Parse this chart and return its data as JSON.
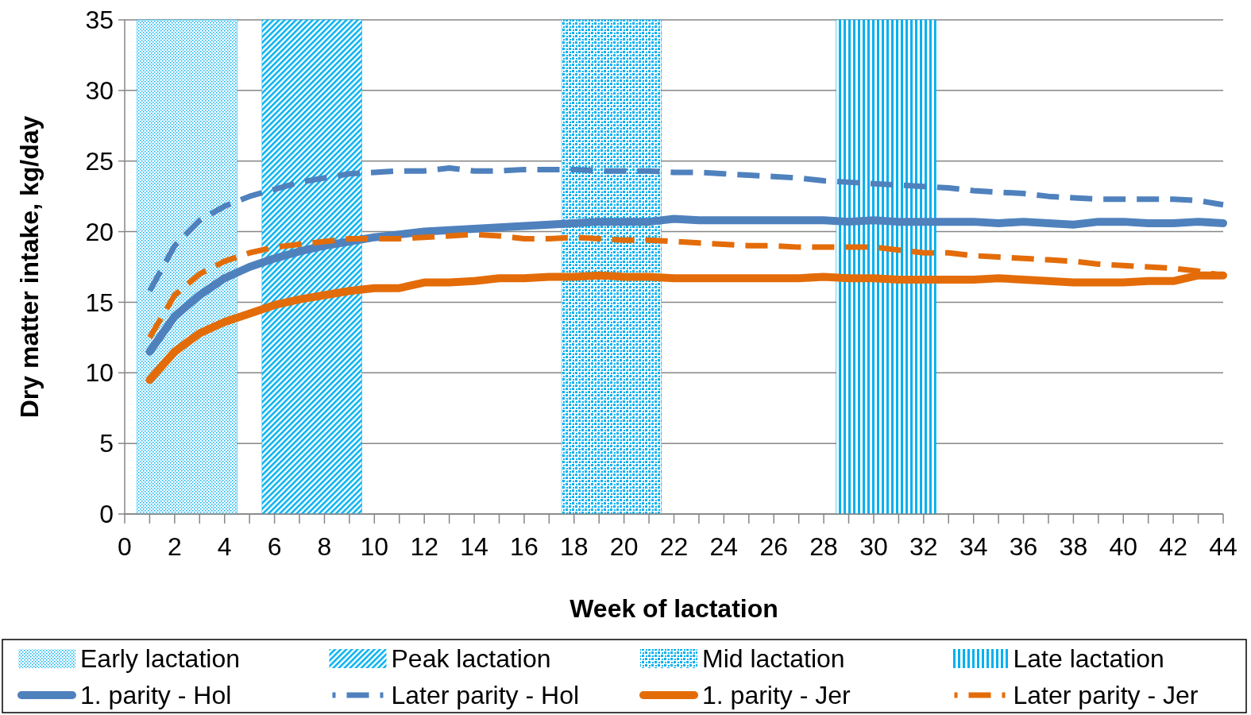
{
  "chart_data": {
    "type": "line",
    "xlabel": "Week of lactation",
    "ylabel": "Dry matter intake, kg/day",
    "xlim": [
      0,
      44
    ],
    "ylim": [
      0,
      35
    ],
    "yticks": [
      0,
      5,
      10,
      15,
      20,
      25,
      30,
      35
    ],
    "xticks": [
      0,
      {
        "value": 1,
        "label": null
      },
      2,
      {
        "value": 3,
        "label": null
      },
      4,
      {
        "value": 5,
        "label": null
      },
      6,
      {
        "value": 7,
        "label": null
      },
      8,
      {
        "value": 9,
        "label": null
      },
      10,
      {
        "value": 11,
        "label": null
      },
      12,
      {
        "value": 13,
        "label": null
      },
      14,
      {
        "value": 15,
        "label": null
      },
      16,
      {
        "value": 17,
        "label": null
      },
      18,
      {
        "value": 19,
        "label": null
      },
      20,
      {
        "value": 21,
        "label": null
      },
      22,
      {
        "value": 23,
        "label": null
      },
      24,
      {
        "value": 25,
        "label": null
      },
      26,
      {
        "value": 27,
        "label": null
      },
      28,
      {
        "value": 29,
        "label": null
      },
      30,
      {
        "value": 31,
        "label": null
      },
      32,
      {
        "value": 33,
        "label": null
      },
      34,
      {
        "value": 35,
        "label": null
      },
      36,
      {
        "value": 37,
        "label": null
      },
      38,
      {
        "value": 39,
        "label": null
      },
      40,
      {
        "value": 41,
        "label": null
      },
      42,
      {
        "value": 43,
        "label": null
      },
      44
    ],
    "grid": "y",
    "legend": "bottom",
    "x": [
      1,
      2,
      3,
      4,
      5,
      6,
      7,
      8,
      9,
      10,
      11,
      12,
      13,
      14,
      15,
      16,
      17,
      18,
      19,
      20,
      21,
      22,
      23,
      24,
      25,
      26,
      27,
      28,
      29,
      30,
      31,
      32,
      33,
      34,
      35,
      36,
      37,
      38,
      39,
      40,
      41,
      42,
      43,
      44
    ],
    "bands": [
      {
        "axis": "x",
        "from": 0.5,
        "to": 4.5,
        "label": "Early lactation",
        "color": "#00b0f0"
      },
      {
        "axis": "x",
        "from": 5.5,
        "to": 9.5,
        "label": "Peak lactation",
        "color": "#00b0f0"
      },
      {
        "axis": "x",
        "from": 17.5,
        "to": 21.5,
        "label": "Mid lactation",
        "color": "#00b0f0"
      },
      {
        "axis": "x",
        "from": 28.5,
        "to": 32.5,
        "label": "Late lactation",
        "color": "#00b0f0"
      }
    ],
    "series": [
      {
        "name": "1. parity - Hol",
        "color": "#4f81bd",
        "line_style": "solid",
        "values": [
          11.5,
          14,
          15.5,
          16.7,
          17.5,
          18.1,
          18.6,
          19.0,
          19.3,
          19.6,
          19.8,
          20.0,
          20.1,
          20.2,
          20.3,
          20.4,
          20.5,
          20.6,
          20.7,
          20.7,
          20.7,
          20.9,
          20.8,
          20.8,
          20.8,
          20.8,
          20.8,
          20.8,
          20.7,
          20.8,
          20.7,
          20.7,
          20.7,
          20.7,
          20.6,
          20.7,
          20.6,
          20.5,
          20.7,
          20.7,
          20.6,
          20.6,
          20.7,
          20.6
        ]
      },
      {
        "name": "Later parity - Hol",
        "color": "#4f81bd",
        "line_style": "dashed",
        "values": [
          15.8,
          19,
          20.8,
          21.8,
          22.5,
          23.0,
          23.5,
          23.8,
          24.1,
          24.2,
          24.3,
          24.3,
          24.5,
          24.3,
          24.3,
          24.4,
          24.4,
          24.4,
          24.3,
          24.3,
          24.3,
          24.2,
          24.2,
          24.1,
          24.0,
          23.9,
          23.8,
          23.6,
          23.5,
          23.4,
          23.3,
          23.2,
          23.1,
          22.9,
          22.8,
          22.7,
          22.5,
          22.4,
          22.3,
          22.3,
          22.3,
          22.3,
          22.2,
          21.9
        ]
      },
      {
        "name": "1. parity - Jer",
        "color": "#e36c09",
        "line_style": "solid",
        "values": [
          9.5,
          11.5,
          12.8,
          13.6,
          14.2,
          14.8,
          15.2,
          15.5,
          15.8,
          16.0,
          16.0,
          16.4,
          16.4,
          16.5,
          16.7,
          16.7,
          16.8,
          16.8,
          16.9,
          16.8,
          16.8,
          16.7,
          16.7,
          16.7,
          16.7,
          16.7,
          16.7,
          16.8,
          16.7,
          16.7,
          16.6,
          16.6,
          16.6,
          16.6,
          16.7,
          16.6,
          16.5,
          16.4,
          16.4,
          16.4,
          16.5,
          16.5,
          16.9,
          16.9
        ]
      },
      {
        "name": "Later parity - Jer",
        "color": "#e36c09",
        "line_style": "dashed",
        "values": [
          12.5,
          15.5,
          17.0,
          17.9,
          18.5,
          18.9,
          19.1,
          19.3,
          19.5,
          19.5,
          19.5,
          19.6,
          19.7,
          19.8,
          19.7,
          19.5,
          19.5,
          19.6,
          19.5,
          19.4,
          19.4,
          19.3,
          19.2,
          19.1,
          19.0,
          19.0,
          18.9,
          18.9,
          18.9,
          18.9,
          18.7,
          18.5,
          18.5,
          18.3,
          18.2,
          18.1,
          18.0,
          17.9,
          17.7,
          17.6,
          17.5,
          17.4,
          17.2,
          16.9
        ]
      }
    ]
  }
}
